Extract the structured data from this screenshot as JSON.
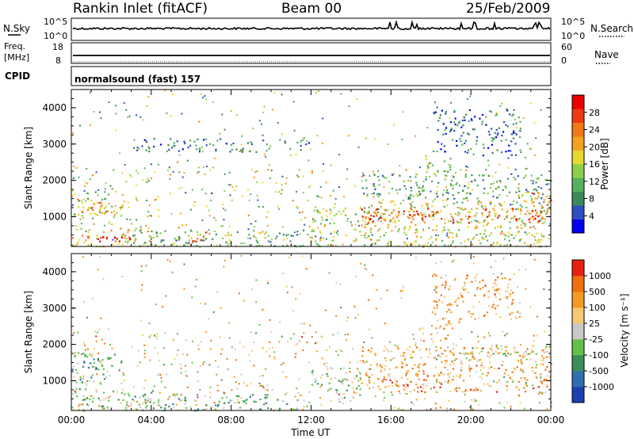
{
  "header": {
    "station": "Rankin Inlet (fitACF)",
    "beam": "Beam 00",
    "date": "25/Feb/2009"
  },
  "params": {
    "nsky_label": "N.Sky",
    "nsky_tick_top": "10^5",
    "nsky_tick_bottom": "10^0",
    "nsearch_label": "N.Search",
    "nsearch_tick_top": "10^5",
    "nsearch_tick_bottom": "10^0",
    "freq_label_1": "Freq.",
    "freq_label_2": "[MHz]",
    "freq_tick_top": "18",
    "freq_tick_bottom": "8",
    "nave_label": "Nave",
    "nave_tick_top": "60",
    "nave_tick_bottom": "0",
    "cpid_label": "CPID",
    "cpid_value": "normalsound (fast) 157"
  },
  "chart_data": [
    {
      "type": "heatmap",
      "panel": "power",
      "ylabel": "Slant Range [km]",
      "ylim": [
        180,
        4500
      ],
      "yticks": [
        "1000",
        "2000",
        "3000",
        "4000"
      ],
      "xlabel": "Time UT",
      "xlim": [
        "00:00",
        "24:00"
      ],
      "colorbar": {
        "label": "Power [dB]",
        "ticks": [
          "4",
          "8",
          "12",
          "16",
          "20",
          "24",
          "28"
        ],
        "colors": [
          "#0000ee",
          "#2e4fbf",
          "#3e8a5a",
          "#55b05f",
          "#8cd04a",
          "#e8d830",
          "#f5a020",
          "#f07818",
          "#ee3a10",
          "#e80000"
        ]
      },
      "regions": [
        {
          "t0": 0.0,
          "t1": 2.6,
          "r0": 1000,
          "r1": 1750,
          "level": 0.45
        },
        {
          "t0": 0.2,
          "t1": 1.8,
          "r0": 1100,
          "r1": 1550,
          "level": 0.75
        },
        {
          "t0": 0.0,
          "t1": 4.0,
          "r0": 200,
          "r1": 700,
          "level": 0.6
        },
        {
          "t0": 0.8,
          "t1": 3.0,
          "r0": 250,
          "r1": 550,
          "level": 0.92
        },
        {
          "t0": 3.0,
          "t1": 12.0,
          "r0": 200,
          "r1": 650,
          "level": 0.35
        },
        {
          "t0": 5.8,
          "t1": 7.0,
          "r0": 200,
          "r1": 500,
          "level": 0.85
        },
        {
          "t0": 12.0,
          "t1": 24.0,
          "r0": 200,
          "r1": 700,
          "level": 0.5
        },
        {
          "t0": 12.0,
          "t1": 14.5,
          "r0": 700,
          "r1": 1300,
          "level": 0.45
        },
        {
          "t0": 14.5,
          "t1": 24.0,
          "r0": 700,
          "r1": 1500,
          "level": 0.55
        },
        {
          "t0": 14.5,
          "t1": 23.5,
          "r0": 850,
          "r1": 1250,
          "level": 0.85
        },
        {
          "t0": 23.0,
          "t1": 24.0,
          "r0": 900,
          "r1": 1700,
          "level": 0.8
        },
        {
          "t0": 14.5,
          "t1": 24.0,
          "r0": 1500,
          "r1": 2200,
          "level": 0.3
        },
        {
          "t0": 17.5,
          "t1": 19.0,
          "r0": 2200,
          "r1": 2700,
          "level": 0.45
        },
        {
          "t0": 18.0,
          "t1": 22.5,
          "r0": 2700,
          "r1": 4000,
          "level": 0.2
        },
        {
          "t0": 3.0,
          "t1": 12.0,
          "r0": 2800,
          "r1": 3200,
          "level": 0.25
        }
      ]
    },
    {
      "type": "heatmap",
      "panel": "velocity",
      "ylabel": "Slant Range [km]",
      "ylim": [
        180,
        4500
      ],
      "yticks": [
        "1000",
        "2000",
        "3000",
        "4000"
      ],
      "xlabel": "Time UT",
      "xlim": [
        "00:00",
        "24:00"
      ],
      "xticks": [
        "00:00",
        "04:00",
        "08:00",
        "12:00",
        "16:00",
        "20:00",
        "00:00"
      ],
      "colorbar": {
        "label": "Velocity [m s⁻¹]",
        "ticks": [
          "1000",
          "500",
          "100",
          "25",
          "-25",
          "-100",
          "-500",
          "-1000"
        ],
        "colors": [
          "#1c3fb0",
          "#2f6fb0",
          "#3d8d5a",
          "#63c04a",
          "#c8c8c8",
          "#f8c870",
          "#f59a20",
          "#f07010",
          "#e82010"
        ]
      },
      "regions": [
        {
          "t0": 0.0,
          "t1": 2.6,
          "r0": 900,
          "r1": 1800,
          "level": 0.3
        },
        {
          "t0": 0.0,
          "t1": 4.0,
          "r0": 200,
          "r1": 800,
          "level": 0.45
        },
        {
          "t0": 3.0,
          "t1": 12.0,
          "r0": 200,
          "r1": 650,
          "level": 0.35
        },
        {
          "t0": 12.0,
          "t1": 14.5,
          "r0": 650,
          "r1": 1400,
          "level": 0.4
        },
        {
          "t0": 14.5,
          "t1": 24.0,
          "r0": 700,
          "r1": 1500,
          "level": 0.75
        },
        {
          "t0": 14.5,
          "t1": 24.0,
          "r0": 1500,
          "r1": 2000,
          "level": 0.68
        },
        {
          "t0": 17.5,
          "t1": 19.0,
          "r0": 2100,
          "r1": 2700,
          "level": 0.7
        },
        {
          "t0": 20.0,
          "t1": 24.0,
          "r0": 1700,
          "r1": 2000,
          "level": 0.5
        },
        {
          "t0": 18.0,
          "t1": 22.5,
          "r0": 2700,
          "r1": 4000,
          "level": 0.72
        }
      ]
    }
  ]
}
